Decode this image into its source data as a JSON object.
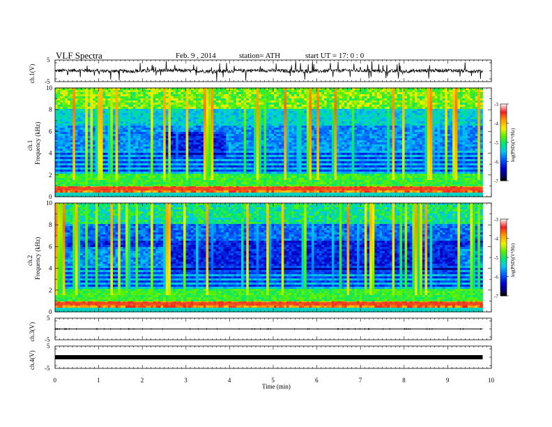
{
  "header": {
    "title": "VLF  Spectra",
    "date": "Feb. 9  , 2014",
    "station": "station= ATH",
    "start": "start  UT  =    17: 0  : 0"
  },
  "chart_data": [
    {
      "type": "line",
      "id": "ch1",
      "ylabel": "ch.1(V)",
      "ylim": [
        -5,
        5
      ],
      "yticks": [
        5,
        -5
      ],
      "xlim": [
        0,
        10
      ],
      "baseline": 0,
      "description_values": {
        "mean_level": 0.0,
        "noise_amplitude": 1.5,
        "spike_amplitude": 4.5
      }
    },
    {
      "type": "heatmap",
      "id": "ch1_spectrogram",
      "ylabel_top": "ch.1",
      "ylabel": "Frequency  (kHz)",
      "xlim": [
        0,
        9.8
      ],
      "ylim": [
        0,
        10
      ],
      "yticks": [
        0,
        2,
        4,
        6,
        8,
        10
      ],
      "colorbar": {
        "label": "log(PSD)(V²/Hz)",
        "range": [
          -7,
          -3
        ],
        "ticks": [
          "-3",
          "-4",
          "-5",
          "-6",
          "-7"
        ]
      },
      "features": {
        "quiet_interval_min": [
          2.55,
          3.9
        ],
        "strong_line_khz": [
          0.6,
          0.9
        ],
        "data_end_min": 9.8
      }
    },
    {
      "type": "heatmap",
      "id": "ch2_spectrogram",
      "ylabel_top": "ch.2",
      "ylabel": "Frequency  (kHz)",
      "xlim": [
        0,
        9.8
      ],
      "ylim": [
        0,
        10
      ],
      "yticks": [
        0,
        2,
        4,
        6,
        8,
        10
      ],
      "colorbar": {
        "label": "log(PSD)(V²/Hz)",
        "range": [
          -7,
          -3
        ],
        "ticks": [
          "-3",
          "-4",
          "-5",
          "-6",
          "-7"
        ]
      },
      "features": {
        "quiet_interval_min": [
          2.55,
          9.25
        ],
        "strong_line_khz": [
          0.6,
          0.9
        ],
        "data_end_min": 9.8
      }
    },
    {
      "type": "line",
      "id": "ch3",
      "ylabel": "ch.3(V)",
      "ylim": [
        -5,
        5
      ],
      "yticks": [
        5,
        -5
      ],
      "xlim": [
        0,
        10
      ],
      "baseline": 0
    },
    {
      "type": "line",
      "id": "ch4",
      "ylabel": "ch.4(V)",
      "ylim": [
        -5,
        5
      ],
      "yticks": [
        5,
        -5
      ],
      "xlim": [
        0,
        10
      ],
      "baseline": 0
    }
  ],
  "xaxis": {
    "label": "Time  (min)",
    "ticks": [
      "0",
      "1",
      "2",
      "3",
      "4",
      "5",
      "6",
      "7",
      "8",
      "9",
      "10"
    ],
    "range": [
      0,
      10
    ]
  }
}
